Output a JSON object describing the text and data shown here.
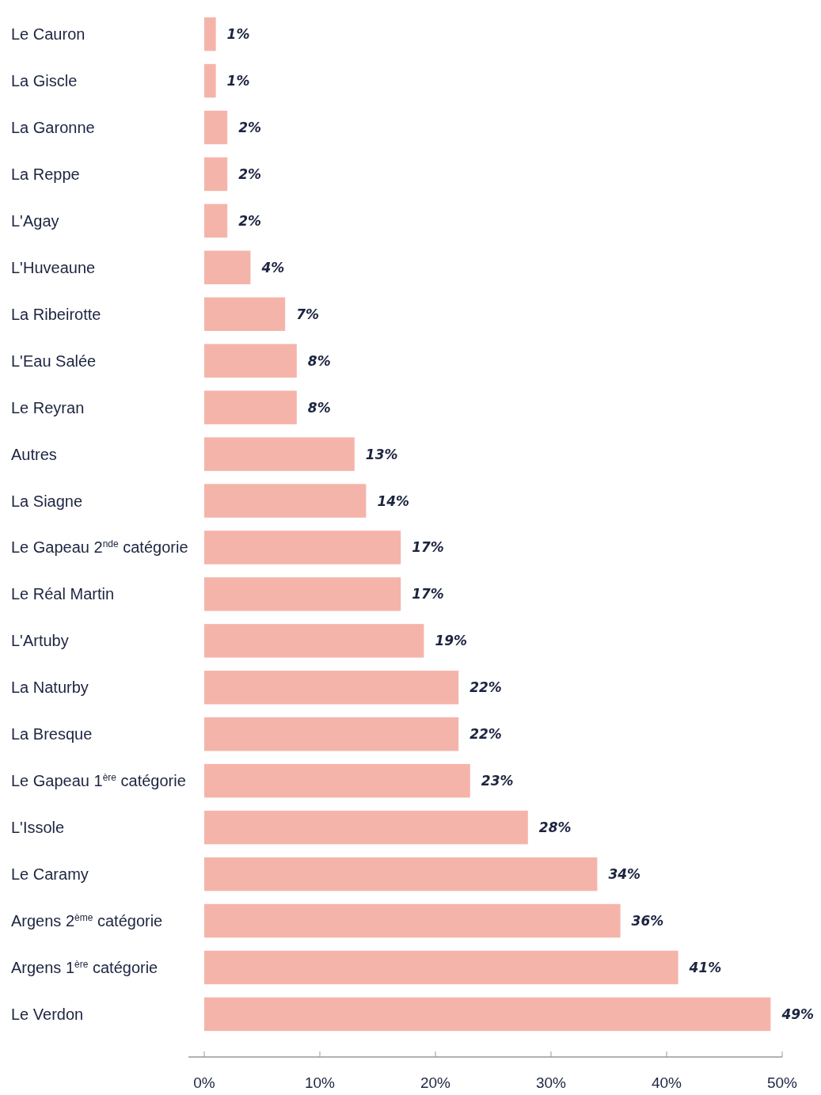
{
  "chart_data": {
    "type": "bar",
    "orientation": "horizontal",
    "categories": [
      "Le Cauron",
      "La Giscle",
      "La Garonne",
      "La Reppe",
      "L'Agay",
      "L'Huveaune",
      "La Ribeirotte",
      "L'Eau Salée",
      "Le Reyran",
      "Autres",
      "La Siagne",
      "Le Gapeau 2$^{nde}$ catégorie",
      "Le Réal Martin",
      "L'Artuby",
      "La Naturby",
      "La Bresque",
      "Le Gapeau 1$^{ère}$ catégorie",
      "L'Issole",
      "Le Caramy",
      "Argens 2$^{ème}$ catégorie",
      "Argens 1$^{ère}$ catégorie",
      "Le Verdon"
    ],
    "values": [
      1,
      1,
      2,
      2,
      2,
      4,
      7,
      8,
      8,
      13,
      14,
      17,
      17,
      19,
      22,
      22,
      23,
      28,
      34,
      36,
      41,
      49
    ],
    "value_labels": [
      "1%",
      "1%",
      "2%",
      "2%",
      "2%",
      "4%",
      "7%",
      "8%",
      "8%",
      "13%",
      "14%",
      "17%",
      "17%",
      "19%",
      "22%",
      "22%",
      "23%",
      "28%",
      "34%",
      "36%",
      "41%",
      "49%"
    ],
    "color": "#f5b4aa",
    "xlim": [
      0,
      50
    ],
    "xticks": [
      {
        "value": 0,
        "label": "0%"
      },
      {
        "value": 10,
        "label": "10%"
      },
      {
        "value": 20,
        "label": "20%"
      },
      {
        "value": 30,
        "label": "30%"
      },
      {
        "value": 40,
        "label": "40%"
      },
      {
        "value": 50,
        "label": "50%"
      }
    ],
    "grid": false
  }
}
